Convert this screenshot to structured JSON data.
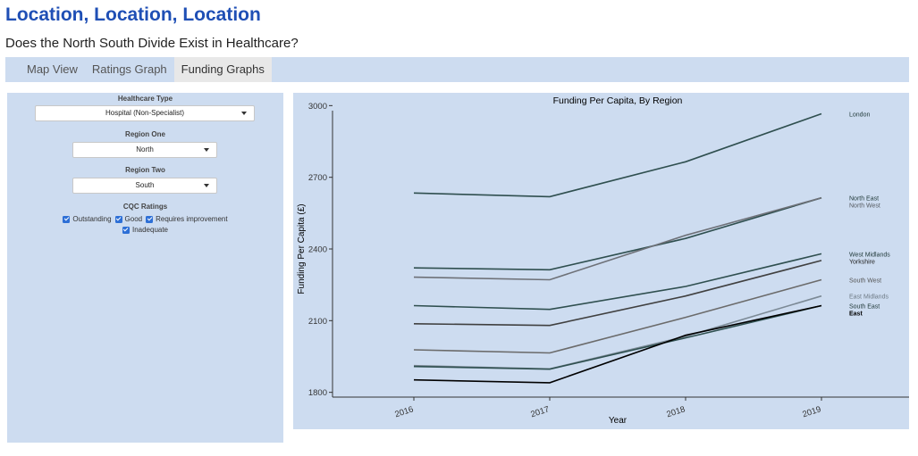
{
  "header": {
    "title": "Location, Location, Location",
    "subtitle": "Does the North South Divide Exist in Healthcare?"
  },
  "tabs": [
    {
      "label": "Map View",
      "active": false
    },
    {
      "label": "Ratings Graph",
      "active": false
    },
    {
      "label": "Funding Graphs",
      "active": true
    }
  ],
  "sidebar": {
    "healthcare_type_label": "Healthcare Type",
    "healthcare_type_value": "Hospital (Non-Specialist)",
    "region_one_label": "Region One",
    "region_one_value": "North",
    "region_two_label": "Region Two",
    "region_two_value": "South",
    "cqc_label": "CQC Ratings",
    "cqc_options": [
      {
        "label": "Outstanding",
        "checked": true
      },
      {
        "label": "Good",
        "checked": true
      },
      {
        "label": "Requires improvement",
        "checked": true
      },
      {
        "label": "Inadequate",
        "checked": true
      }
    ]
  },
  "colors": {
    "title": "#1f4fb5",
    "panel_bg": "#cddcf0",
    "checkbox": "#2d6fd6"
  },
  "chart_data": {
    "type": "line",
    "title": "Funding Per Capita, By Region",
    "xlabel": "Year",
    "ylabel": "Funding Per Capita (£)",
    "x": [
      "2016",
      "2017",
      "2018",
      "2019"
    ],
    "yticks": [
      "1800",
      "2100",
      "2400",
      "2700",
      "3000"
    ],
    "ylim": [
      1780,
      3020
    ],
    "grid": false,
    "series": [
      {
        "name": "London",
        "values": [
          2634,
          2619,
          2765,
          2966
        ],
        "color": "#2f4f4f",
        "label_color": "#1f3838",
        "bold": false
      },
      {
        "name": "North East",
        "values": [
          2321,
          2313,
          2444,
          2614
        ],
        "color": "#2f4f4f",
        "label_color": "#1f3838",
        "bold": false
      },
      {
        "name": "North West",
        "values": [
          2282,
          2271,
          2457,
          2614
        ],
        "color": "#6e7178",
        "label_color": "#555a60",
        "bold": false
      },
      {
        "name": "West Midlands",
        "values": [
          2163,
          2147,
          2243,
          2380
        ],
        "color": "#2f4f4f",
        "label_color": "#1f3838",
        "bold": false
      },
      {
        "name": "Yorkshire",
        "values": [
          2087,
          2080,
          2203,
          2352
        ],
        "color": "#404040",
        "label_color": "#222222",
        "bold": false
      },
      {
        "name": "South West",
        "values": [
          1978,
          1965,
          2114,
          2271
        ],
        "color": "#6b6b6b",
        "label_color": "#555555",
        "bold": false
      },
      {
        "name": "East Midlands",
        "values": [
          1912,
          1898,
          2034,
          2203
        ],
        "color": "#7c8a96",
        "label_color": "#6e7b86",
        "bold": false
      },
      {
        "name": "South East",
        "values": [
          1908,
          1897,
          2028,
          2163
        ],
        "color": "#2f5050",
        "label_color": "#1f3838",
        "bold": false
      },
      {
        "name": "East",
        "values": [
          1852,
          1840,
          2039,
          2163
        ],
        "color": "#000000",
        "label_color": "#000000",
        "bold": true
      }
    ]
  }
}
